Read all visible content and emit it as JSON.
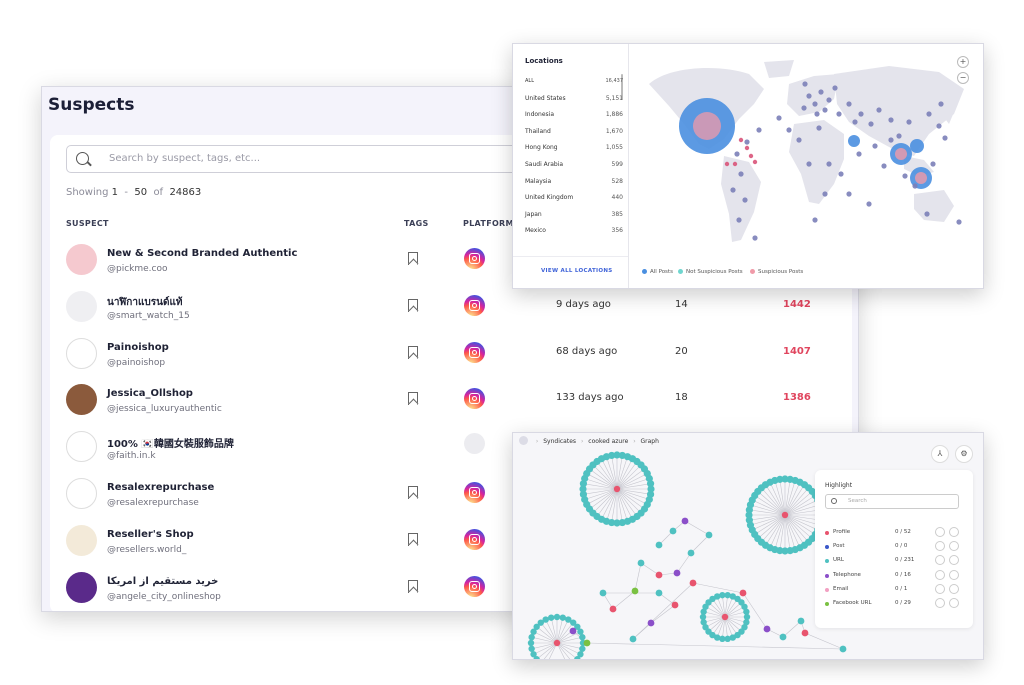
{
  "suspects": {
    "title": "Suspects",
    "search_placeholder": "Search by suspect, tags, etc...",
    "showing": {
      "label": "Showing",
      "from": "1",
      "dash": "-",
      "to": "50",
      "of": "of",
      "total": "24863"
    },
    "columns": {
      "suspect": "SUSPECT",
      "tags": "TAGS",
      "platform": "PLATFORM"
    },
    "rows": [
      {
        "name": "New & Second Branded Authentic",
        "handle": "@pickme.coo",
        "last": "",
        "posts": "",
        "score": "",
        "platform": "instagram",
        "avatar_color": "#f5c9cf"
      },
      {
        "name": "นาฬิกาแบรนด์แท้",
        "handle": "@smart_watch_15",
        "last": "9 days ago",
        "posts": "14",
        "score": "1442",
        "platform": "instagram",
        "avatar_color": "#efeff2"
      },
      {
        "name": "Painoishop",
        "handle": "@painoishop",
        "last": "68 days ago",
        "posts": "20",
        "score": "1407",
        "platform": "instagram",
        "avatar_color": "#ffffff"
      },
      {
        "name": "Jessica_Ollshop",
        "handle": "@jessica_luxuryauthentic",
        "last": "133 days ago",
        "posts": "18",
        "score": "1386",
        "platform": "instagram",
        "avatar_color": "#8b5a3c"
      },
      {
        "name": "100% 🇰🇷韓國女裝服飾品牌",
        "handle": "@faith.in.k",
        "last": "",
        "posts": "",
        "score": "",
        "platform": "none",
        "avatar_color": "#ffffff"
      },
      {
        "name": "Resalexrepurchase",
        "handle": "@resalexrepurchase",
        "last": "",
        "posts": "",
        "score": "",
        "platform": "instagram",
        "avatar_color": "#ffffff"
      },
      {
        "name": "Reseller's Shop",
        "handle": "@resellers.world_",
        "last": "",
        "posts": "",
        "score": "",
        "platform": "instagram",
        "avatar_color": "#f3ead9"
      },
      {
        "name": "خريد مستقيم از امريكا",
        "handle": "@angele_city_onlineshop",
        "last": "",
        "posts": "",
        "score": "",
        "platform": "instagram",
        "avatar_color": "#5a2a8a"
      }
    ]
  },
  "locations": {
    "title": "Locations",
    "items": [
      {
        "name": "ALL",
        "value": "16,437"
      },
      {
        "name": "United States",
        "value": "5,151"
      },
      {
        "name": "Indonesia",
        "value": "1,886"
      },
      {
        "name": "Thailand",
        "value": "1,670"
      },
      {
        "name": "Hong Kong",
        "value": "1,055"
      },
      {
        "name": "Saudi Arabia",
        "value": "599"
      },
      {
        "name": "Malaysia",
        "value": "528"
      },
      {
        "name": "United Kingdom",
        "value": "440"
      },
      {
        "name": "Japan",
        "value": "385"
      },
      {
        "name": "Mexico",
        "value": "356"
      }
    ],
    "view_all": "VIEW ALL LOCATIONS",
    "zoom_in": "+",
    "zoom_out": "−",
    "legend": [
      {
        "label": "All Posts",
        "color": "#4a8fe0"
      },
      {
        "label": "Not Suspicious Posts",
        "color": "#6fd6cf"
      },
      {
        "label": "Suspicious Posts",
        "color": "#f09aa8"
      }
    ],
    "colors": {
      "land": "#e4e4ec",
      "dot": "#7b7fb8",
      "pin": "#d9547a"
    }
  },
  "graph": {
    "breadcrumb": [
      "Syndicates",
      "cooked azure",
      "Graph"
    ],
    "highlight": {
      "title": "Highlight",
      "search_placeholder": "Search",
      "items": [
        {
          "label": "Profile",
          "count": "0 / 52",
          "color": "#e8546e"
        },
        {
          "label": "Post",
          "count": "0 / 0",
          "color": "#3b58c9"
        },
        {
          "label": "URL",
          "count": "0 / 231",
          "color": "#4fc1c1"
        },
        {
          "label": "Telephone",
          "count": "0 / 16",
          "color": "#8b4fc9"
        },
        {
          "label": "Email",
          "count": "0 / 1",
          "color": "#f2a0c2"
        },
        {
          "label": "Facebook URL",
          "count": "0 / 29",
          "color": "#7ac142"
        }
      ]
    },
    "colors": {
      "url": "#4fc1c1",
      "profile": "#e8546e",
      "phone": "#8b4fc9",
      "fb": "#7ac142",
      "edge": "#c4c4cc"
    }
  }
}
